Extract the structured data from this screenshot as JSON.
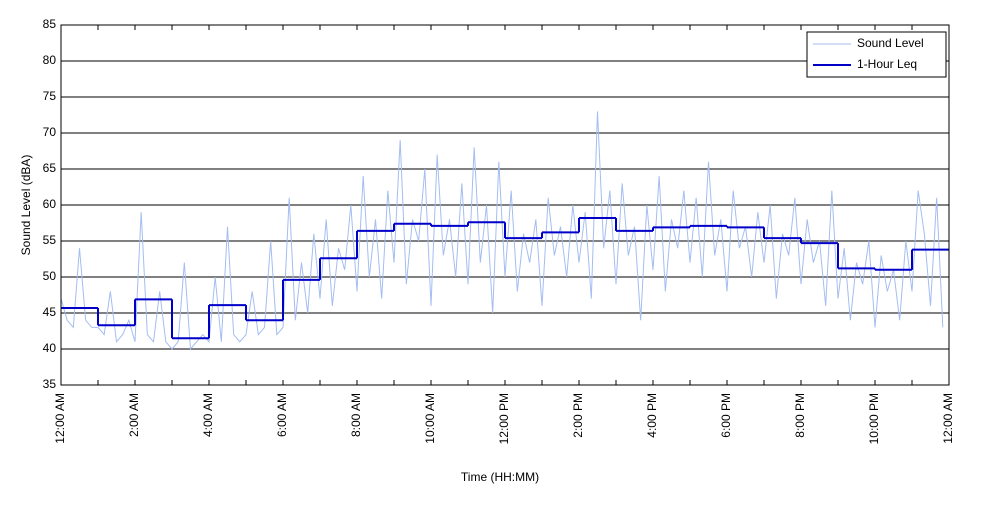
{
  "chart_data": {
    "type": "line",
    "xlabel": "Time (HH:MM)",
    "ylabel": "Sound Level (dBA)",
    "xlim": [
      0,
      1440
    ],
    "ylim": [
      35,
      85
    ],
    "yticks": [
      35,
      40,
      45,
      50,
      55,
      60,
      65,
      70,
      75,
      80,
      85
    ],
    "xticks": [
      {
        "value": 0,
        "label": "12:00 AM"
      },
      {
        "value": 120,
        "label": "2:00 AM"
      },
      {
        "value": 240,
        "label": "4:00 AM"
      },
      {
        "value": 360,
        "label": "6:00 AM"
      },
      {
        "value": 480,
        "label": "8:00 AM"
      },
      {
        "value": 600,
        "label": "10:00 AM"
      },
      {
        "value": 720,
        "label": "12:00 PM"
      },
      {
        "value": 840,
        "label": "2:00 PM"
      },
      {
        "value": 960,
        "label": "4:00 PM"
      },
      {
        "value": 1080,
        "label": "6:00 PM"
      },
      {
        "value": 1200,
        "label": "8:00 PM"
      },
      {
        "value": 1320,
        "label": "10:00 PM"
      },
      {
        "value": 1440,
        "label": "12:00 AM"
      }
    ],
    "xminorticks": [
      60,
      180,
      300,
      420,
      540,
      660,
      780,
      900,
      1020,
      1140,
      1260,
      1380
    ],
    "grid": true,
    "legend": "upper right",
    "series": [
      {
        "name": "Sound Level",
        "color": "#a4bdf2",
        "step": false,
        "x": [
          0,
          10,
          20,
          30,
          40,
          50,
          60,
          70,
          80,
          90,
          100,
          110,
          120,
          130,
          140,
          150,
          160,
          170,
          180,
          190,
          200,
          210,
          220,
          230,
          240,
          250,
          260,
          270,
          280,
          290,
          300,
          310,
          320,
          330,
          340,
          350,
          360,
          370,
          380,
          390,
          400,
          410,
          420,
          430,
          440,
          450,
          460,
          470,
          480,
          490,
          500,
          510,
          520,
          530,
          540,
          550,
          560,
          570,
          580,
          590,
          600,
          610,
          620,
          630,
          640,
          650,
          660,
          670,
          680,
          690,
          700,
          710,
          720,
          730,
          740,
          750,
          760,
          770,
          780,
          790,
          800,
          810,
          820,
          830,
          840,
          850,
          860,
          870,
          880,
          890,
          900,
          910,
          920,
          930,
          940,
          950,
          960,
          970,
          980,
          990,
          1000,
          1010,
          1020,
          1030,
          1040,
          1050,
          1060,
          1070,
          1080,
          1090,
          1100,
          1110,
          1120,
          1130,
          1140,
          1150,
          1160,
          1170,
          1180,
          1190,
          1200,
          1210,
          1220,
          1230,
          1240,
          1250,
          1260,
          1270,
          1280,
          1290,
          1300,
          1310,
          1320,
          1330,
          1340,
          1350,
          1360,
          1370,
          1380,
          1390,
          1400,
          1410,
          1420,
          1430
        ],
        "values": [
          47,
          44,
          43,
          54,
          44,
          43,
          43,
          42,
          48,
          41,
          42,
          44,
          41,
          59,
          42,
          41,
          48,
          41,
          40,
          41,
          52,
          40,
          41,
          42,
          41,
          50,
          41,
          57,
          42,
          41,
          42,
          48,
          42,
          43,
          55,
          42,
          43,
          61,
          44,
          52,
          45,
          56,
          47,
          58,
          46,
          54,
          51,
          60,
          48,
          64,
          50,
          58,
          47,
          62,
          52,
          69,
          49,
          58,
          55,
          65,
          46,
          67,
          53,
          58,
          50,
          63,
          49,
          68,
          52,
          60,
          45,
          66,
          50,
          62,
          48,
          56,
          52,
          58,
          46,
          61,
          53,
          57,
          50,
          60,
          52,
          59,
          47,
          73,
          54,
          62,
          49,
          63,
          53,
          57,
          44,
          60,
          51,
          64,
          48,
          58,
          54,
          62,
          52,
          61,
          50,
          66,
          53,
          58,
          48,
          62,
          54,
          57,
          50,
          59,
          52,
          60,
          47,
          56,
          53,
          61,
          49,
          58,
          52,
          55,
          46,
          62,
          47,
          54,
          44,
          52,
          49,
          55,
          43,
          53,
          48,
          51,
          44,
          55,
          48,
          62,
          56,
          46,
          61,
          43
        ]
      },
      {
        "name": "1-Hour Leq",
        "color": "#0000c8",
        "step": true,
        "x": [
          0,
          60,
          120,
          180,
          240,
          300,
          360,
          420,
          480,
          540,
          600,
          660,
          720,
          780,
          840,
          900,
          960,
          1020,
          1080,
          1140,
          1200,
          1260,
          1320,
          1380
        ],
        "values": [
          45.7,
          43.3,
          46.9,
          41.5,
          46.1,
          44.0,
          49.6,
          52.6,
          56.4,
          57.4,
          57.1,
          57.6,
          55.4,
          56.2,
          58.2,
          56.4,
          56.9,
          57.1,
          56.9,
          55.4,
          54.7,
          51.2,
          51.0,
          53.8
        ]
      }
    ]
  }
}
